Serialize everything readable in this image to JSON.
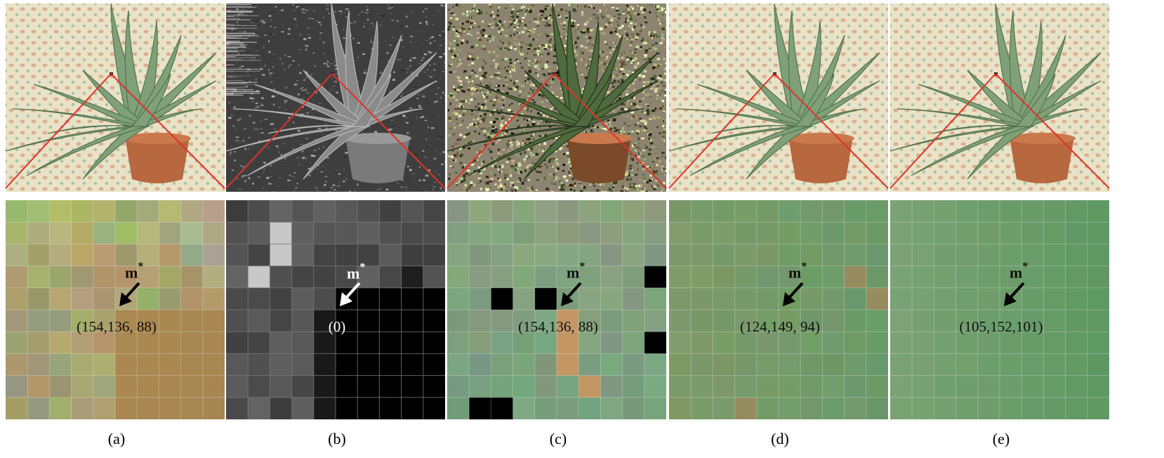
{
  "panels": [
    {
      "id": "a",
      "caption": "(a)",
      "marker": "m",
      "marker_sup": "*",
      "value": "(154,136, 88)",
      "style": "original",
      "arrow_color": "#000000",
      "text_color": "#111111"
    },
    {
      "id": "b",
      "caption": "(b)",
      "marker": "m",
      "marker_sup": "*",
      "value": "(0)",
      "style": "gray",
      "arrow_color": "#ffffff",
      "text_color": "#ffffff"
    },
    {
      "id": "c",
      "caption": "(c)",
      "marker": "m",
      "marker_sup": "*",
      "value": "(154,136, 88)",
      "style": "noisy",
      "arrow_color": "#000000",
      "text_color": "#111111"
    },
    {
      "id": "d",
      "caption": "(d)",
      "marker": "m",
      "marker_sup": "*",
      "value": "(124,149, 94)",
      "style": "smooth1",
      "arrow_color": "#000000",
      "text_color": "#111111"
    },
    {
      "id": "e",
      "caption": "(e)",
      "marker": "m",
      "marker_sup": "*",
      "value": "(105,152,101)",
      "style": "smooth2",
      "arrow_color": "#000000",
      "text_color": "#111111"
    }
  ],
  "colors": {
    "zoom_lines": "#e0322a",
    "pot": "#b8683f",
    "leaf": "#7fa079",
    "background_pattern": "#e6dcc0"
  }
}
